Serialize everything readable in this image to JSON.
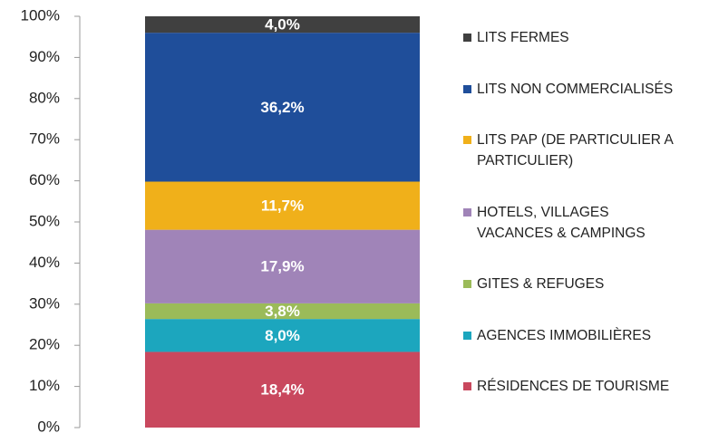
{
  "chart_data": {
    "type": "stacked_bar",
    "categories": [
      null
    ],
    "series": [
      {
        "name": "RÉSIDENCES DE TOURISME",
        "color": "#c9485e",
        "values": [
          18.4
        ],
        "value_labels": [
          "18,4%"
        ]
      },
      {
        "name": "AGENCES IMMOBILIÈRES",
        "color": "#1ca6be",
        "values": [
          8.0
        ],
        "value_labels": [
          "8,0%"
        ]
      },
      {
        "name": "GITES & REFUGES",
        "color": "#9bbb59",
        "values": [
          3.8
        ],
        "value_labels": [
          "3,8%"
        ]
      },
      {
        "name": "HOTELS, VILLAGES VACANCES & CAMPINGS",
        "color": "#a084b8",
        "values": [
          17.9
        ],
        "value_labels": [
          "17,9%"
        ]
      },
      {
        "name": "LITS PAP (DE PARTICULIER A PARTICULIER)",
        "color": "#f0b01a",
        "values": [
          11.7
        ],
        "value_labels": [
          "11,7%"
        ]
      },
      {
        "name": "LITS NON COMMERCIALISÉS",
        "color": "#1f4e9a",
        "values": [
          36.2
        ],
        "value_labels": [
          "36,2%"
        ]
      },
      {
        "name": "LITS FERMES",
        "color": "#404040",
        "values": [
          4.0
        ],
        "value_labels": [
          "4,0%"
        ]
      }
    ],
    "ylim": [
      0,
      100
    ],
    "yticks": [
      {
        "value": 0,
        "label": "0%"
      },
      {
        "value": 10,
        "label": "10%"
      },
      {
        "value": 20,
        "label": "20%"
      },
      {
        "value": 30,
        "label": "30%"
      },
      {
        "value": 40,
        "label": "40%"
      },
      {
        "value": 50,
        "label": "50%"
      },
      {
        "value": 60,
        "label": "60%"
      },
      {
        "value": 70,
        "label": "70%"
      },
      {
        "value": 80,
        "label": "80%"
      },
      {
        "value": 90,
        "label": "90%"
      },
      {
        "value": 100,
        "label": "100%"
      }
    ],
    "legend": "right"
  }
}
